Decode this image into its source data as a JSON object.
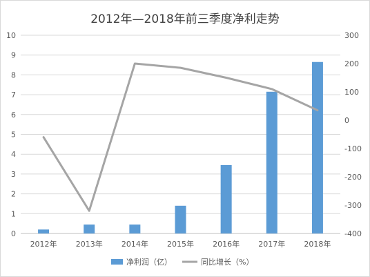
{
  "chart_data": {
    "type": "bar+line",
    "title": "2012年—2018年前三季度净利走势",
    "categories": [
      "2012年",
      "2013年",
      "2014年",
      "2015年",
      "2016年",
      "2017年",
      "2018年"
    ],
    "series": [
      {
        "name": "净利润（亿）",
        "type": "bar",
        "axis": "left",
        "color": "#5b9bd5",
        "values": [
          0.2,
          0.45,
          0.45,
          1.4,
          3.45,
          7.15,
          8.65
        ]
      },
      {
        "name": "同比增长（%）",
        "type": "line",
        "axis": "right",
        "color": "#a5a5a5",
        "values": [
          -60,
          -320,
          200,
          185,
          150,
          110,
          35
        ]
      }
    ],
    "y_left": {
      "min": 0,
      "max": 10,
      "step": 1,
      "ticks": [
        "0",
        "1",
        "2",
        "3",
        "4",
        "5",
        "6",
        "7",
        "8",
        "9",
        "10"
      ]
    },
    "y_right": {
      "min": -400,
      "max": 300,
      "step": 100,
      "ticks": [
        "-400",
        "-300",
        "-200",
        "-100",
        "0",
        "100",
        "200",
        "300"
      ]
    },
    "grid": true,
    "legend_position": "bottom"
  }
}
